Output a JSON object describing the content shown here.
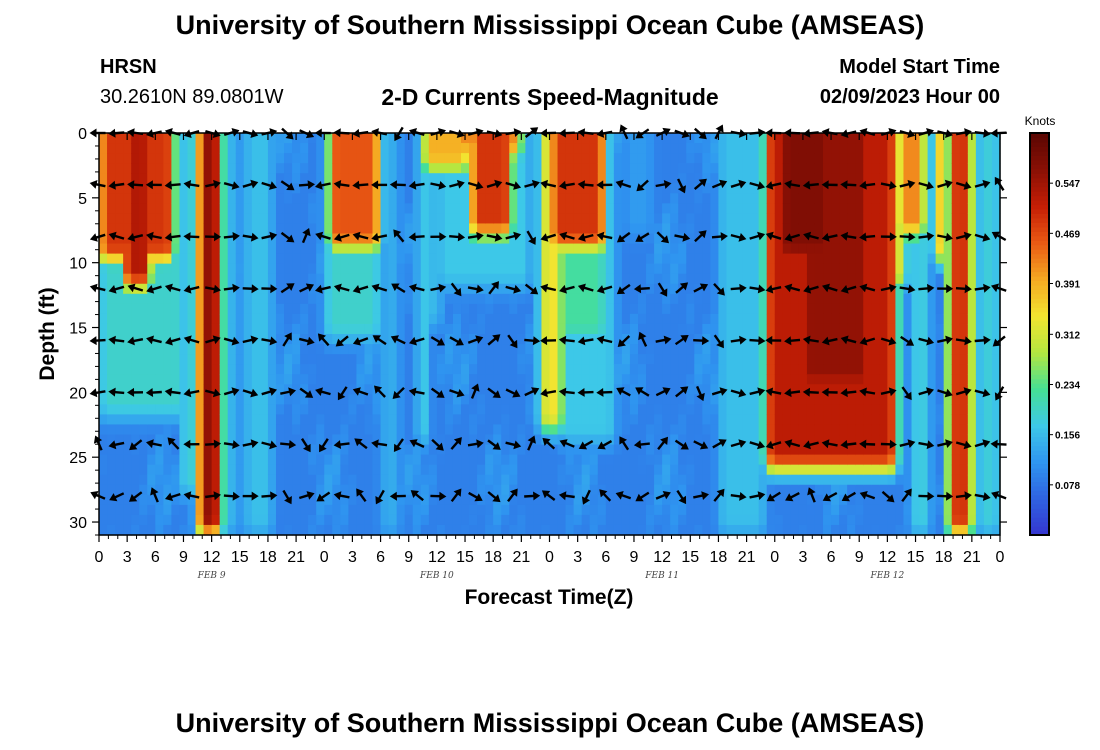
{
  "header": {
    "title": "University of Southern Mississippi Ocean Cube (AMSEAS)",
    "station": "HRSN",
    "coords": "30.2610N  89.0801W",
    "subtitle": "2-D Currents Speed-Magnitude",
    "model_start_label": "Model Start Time",
    "model_start_value": "02/09/2023 Hour 00"
  },
  "footer": {
    "title": "University of Southern Mississippi Ocean Cube (AMSEAS)"
  },
  "chart_data": {
    "type": "heatmap",
    "title": "2-D Currents Speed-Magnitude",
    "xlabel": "Forecast Time(Z)",
    "ylabel": "Depth (ft)",
    "x_ticks": [
      "0",
      "3",
      "6",
      "9",
      "12",
      "15",
      "18",
      "21",
      "0",
      "3",
      "6",
      "9",
      "12",
      "15",
      "18",
      "21",
      "0",
      "3",
      "6",
      "9",
      "12",
      "15",
      "18",
      "21",
      "0",
      "3",
      "6",
      "9",
      "12",
      "15",
      "18",
      "21",
      "0"
    ],
    "day_labels": [
      {
        "label": "FEB 9",
        "hour": 12
      },
      {
        "label": "FEB 10",
        "hour": 36
      },
      {
        "label": "FEB 11",
        "hour": 60
      },
      {
        "label": "FEB 12",
        "hour": 84
      }
    ],
    "x_range_hours": [
      0,
      96
    ],
    "y_ticks": [
      "0",
      "5",
      "10",
      "15",
      "20",
      "25",
      "30"
    ],
    "ylim": [
      0,
      31
    ],
    "colorbar": {
      "unit": "Knots",
      "ticks": [
        "0.078",
        "0.156",
        "0.234",
        "0.312",
        "0.391",
        "0.469",
        "0.547"
      ],
      "range": [
        0,
        0.625
      ],
      "colors": [
        "#3535d0",
        "#2f62e0",
        "#2f95f0",
        "#3dc8e8",
        "#45e095",
        "#b4e640",
        "#f2e430",
        "#f5a922",
        "#ea5a14",
        "#c51e05",
        "#8a1005",
        "#5a0602"
      ]
    },
    "depth_levels": [
      0,
      4,
      8,
      12,
      16,
      20,
      24,
      28
    ],
    "vector_times_hours": [
      0,
      2,
      4,
      6,
      8,
      10,
      12,
      14,
      16,
      18,
      20,
      22,
      24,
      26,
      28,
      30,
      32,
      34,
      36,
      38,
      40,
      42,
      44,
      46,
      48,
      50,
      52,
      54,
      56,
      58,
      60,
      62,
      64,
      66,
      68,
      70,
      72,
      74,
      76,
      78,
      80,
      82,
      84,
      86,
      88,
      90,
      92,
      94,
      96
    ],
    "speed_bands": [
      {
        "h0": 0,
        "h1": 8,
        "d1": 10,
        "s": 0.49
      },
      {
        "h0": 2.5,
        "h1": 5.5,
        "d1": 12,
        "s": 0.53
      },
      {
        "h0": 0,
        "h1": 9,
        "d1": 22,
        "s": 0.19
      },
      {
        "h0": 9,
        "h1": 10,
        "d1": 28,
        "s": 0.24
      },
      {
        "h0": 10.5,
        "h1": 13,
        "d1": 31,
        "s": 0.56
      },
      {
        "h0": 13.5,
        "h1": 15,
        "d1": 31,
        "s": 0.15
      },
      {
        "h0": 15.5,
        "h1": 18.5,
        "d1": 31,
        "s": 0.16
      },
      {
        "h0": 24.5,
        "h1": 30,
        "d1": 9,
        "s": 0.46
      },
      {
        "h0": 24,
        "h1": 30,
        "d1": 16,
        "s": 0.19
      },
      {
        "h0": 30,
        "h1": 32,
        "d1": 31,
        "s": 0.14
      },
      {
        "h0": 34,
        "h1": 35,
        "d1": 24,
        "s": 0.2
      },
      {
        "h0": 34.5,
        "h1": 39.5,
        "d1": 3,
        "s": 0.39
      },
      {
        "h0": 35,
        "h1": 36.5,
        "d1": 15,
        "s": 0.16
      },
      {
        "h0": 38,
        "h1": 45,
        "d1": 2,
        "s": 0.42
      },
      {
        "h0": 39.5,
        "h1": 44,
        "d1": 8,
        "s": 0.49
      },
      {
        "h0": 36,
        "h1": 46,
        "d1": 12,
        "s": 0.17
      },
      {
        "h0": 47,
        "h1": 48.5,
        "d1": 10,
        "s": 0.15
      },
      {
        "h0": 48,
        "h1": 54,
        "d1": 9,
        "s": 0.49
      },
      {
        "h0": 48.5,
        "h1": 54,
        "d1": 16,
        "s": 0.22
      },
      {
        "h0": 47,
        "h1": 49.5,
        "d1": 23,
        "s": 0.34
      },
      {
        "h0": 49,
        "h1": 55,
        "d1": 24,
        "s": 0.17
      },
      {
        "h0": 56,
        "h1": 59,
        "d1": 8,
        "s": 0.12
      },
      {
        "h0": 66,
        "h1": 71,
        "d1": 31,
        "s": 0.16
      },
      {
        "h0": 71,
        "h1": 85,
        "d1": 26,
        "s": 0.52
      },
      {
        "h0": 75,
        "h1": 82,
        "d1": 20,
        "s": 0.56
      },
      {
        "h0": 72.5,
        "h1": 78,
        "d1": 10,
        "s": 0.58
      },
      {
        "h0": 85,
        "h1": 88,
        "d1": 8,
        "s": 0.42
      },
      {
        "h0": 82,
        "h1": 86,
        "d1": 12,
        "s": 0.32
      },
      {
        "h0": 86.5,
        "h1": 88.5,
        "d1": 31,
        "s": 0.18
      },
      {
        "h0": 90.5,
        "h1": 93,
        "d1": 31,
        "s": 0.49
      },
      {
        "h0": 89,
        "h1": 90.5,
        "d1": 10,
        "s": 0.38
      },
      {
        "h0": 93.5,
        "h1": 96,
        "d1": 31,
        "s": 0.18
      }
    ]
  }
}
